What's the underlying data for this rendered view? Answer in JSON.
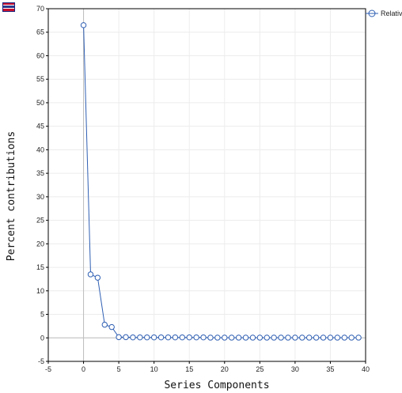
{
  "toolbar": {
    "menu_icon": "menu-grid-icon"
  },
  "colors": {
    "series": "#2f5fb3",
    "grid": "#ececec",
    "zero_line": "#bdbdbd",
    "axis": "#000000"
  },
  "chart_data": {
    "type": "line",
    "title": "",
    "xlabel": "Series Components",
    "ylabel": "Percent contributions",
    "xlim": [
      -5,
      40
    ],
    "ylim": [
      -5,
      70
    ],
    "x_ticks": [
      -5,
      0,
      5,
      10,
      15,
      20,
      25,
      30,
      35,
      40
    ],
    "y_ticks": [
      -5,
      0,
      5,
      10,
      15,
      20,
      25,
      30,
      35,
      40,
      45,
      50,
      55,
      60,
      65,
      70
    ],
    "grid": true,
    "legend_position": "top-right",
    "series": [
      {
        "name": "Relativ",
        "marker": "circle-open",
        "x": [
          0,
          1,
          2,
          3,
          4,
          5,
          6,
          7,
          8,
          9,
          10,
          11,
          12,
          13,
          14,
          15,
          16,
          17,
          18,
          19,
          20,
          21,
          22,
          23,
          24,
          25,
          26,
          27,
          28,
          29,
          30,
          31,
          32,
          33,
          34,
          35,
          36,
          37,
          38,
          39
        ],
        "y": [
          66.5,
          13.5,
          12.8,
          2.8,
          2.3,
          0.15,
          0.15,
          0.1,
          0.1,
          0.1,
          0.1,
          0.1,
          0.1,
          0.1,
          0.1,
          0.1,
          0.1,
          0.1,
          0.05,
          0.05,
          0.05,
          0.05,
          0.05,
          0.05,
          0.05,
          0.05,
          0.05,
          0.05,
          0.05,
          0.05,
          0.05,
          0.05,
          0.05,
          0.05,
          0.05,
          0.05,
          0.05,
          0.05,
          0.05,
          0.05
        ]
      }
    ]
  }
}
